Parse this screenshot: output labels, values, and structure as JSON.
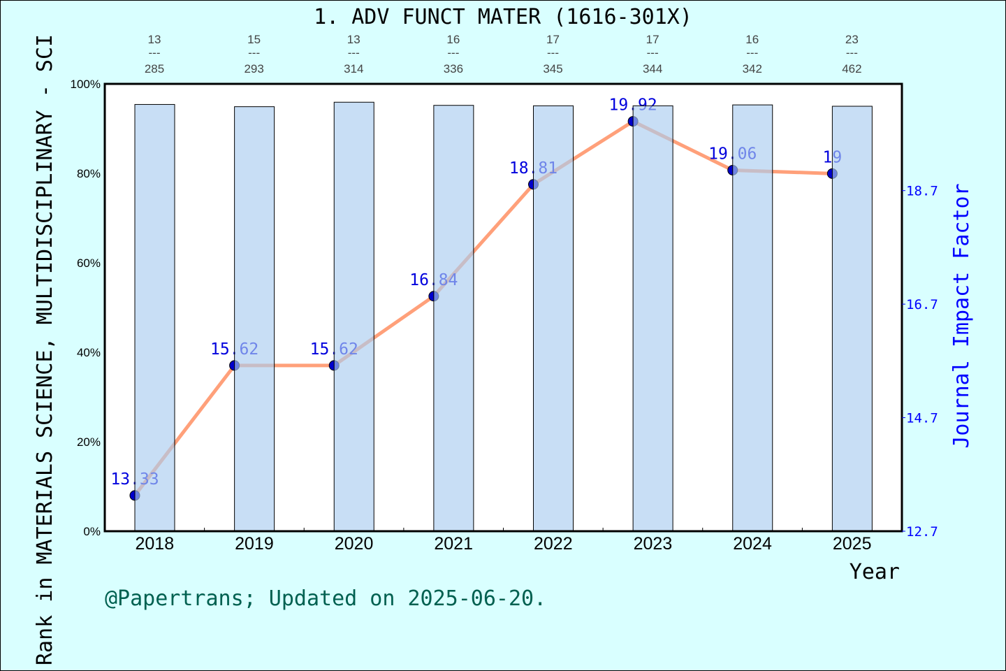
{
  "chart_data": {
    "type": "bar+line",
    "title": "1. ADV FUNCT MATER (1616-301X)",
    "xlabel": "Year",
    "ylabel": "Rank in MATERIALS SCIENCE, MULTIDISCIPLINARY - SCI",
    "ylabel_right": "Journal Impact Factor",
    "footer": "@Papertrans; Updated on 2025-06-20.",
    "categories": [
      "2018",
      "2019",
      "2020",
      "2021",
      "2022",
      "2023",
      "2024",
      "2025"
    ],
    "ylim": [
      0,
      100
    ],
    "yticks": [
      "0%",
      "20%",
      "40%",
      "60%",
      "80%",
      "100%"
    ],
    "ylim_right": [
      12.7,
      20.58
    ],
    "yticks_right": [
      "12.7",
      "14.7",
      "16.7",
      "18.7"
    ],
    "rank": [
      13,
      15,
      13,
      16,
      17,
      17,
      16,
      23
    ],
    "total": [
      285,
      293,
      314,
      336,
      345,
      344,
      342,
      462
    ],
    "rank_separator": "---",
    "bar_percentile": [
      95.4,
      94.9,
      95.9,
      95.2,
      95.1,
      95.1,
      95.3,
      95.0
    ],
    "impact_factor": [
      13.33,
      15.62,
      15.62,
      16.84,
      18.81,
      19.92,
      19.06,
      19
    ],
    "impact_factor_labels": [
      "13.33",
      "15.62",
      "15.62",
      "16.84",
      "18.81",
      "19.92",
      "19.06",
      "19"
    ],
    "colors": {
      "background": "#d9ffff",
      "bar": "#c5e0f7",
      "line": "#ffa07a",
      "point": "#0000cc",
      "right_axis": "#0000ff",
      "footer": "#006050"
    }
  }
}
